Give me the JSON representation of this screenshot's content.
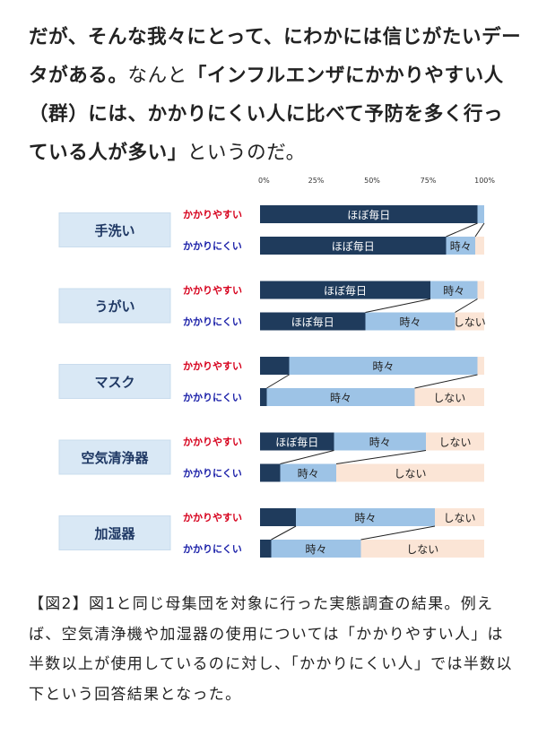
{
  "intro": {
    "p1": "だが、そんな我々にとって、",
    "p2": "にわかには信じがたいデータがある。",
    "p3": "なんと",
    "p4": "「インフルエンザにかかりやすい人（群）には、かかりにくい人に比べて予防を多く行っている人が多い」",
    "p5": "というのだ。"
  },
  "caption": "【図2】図1と同じ母集団を対象に行った実態調査の結果。例えば、空気清浄機や加湿器の使用については「かかりやすい人」は半数以上が使用しているのに対し、「かかりにくい人」では半数以下という回答結果となった。",
  "chart_data": {
    "type": "bar",
    "orientation": "horizontal-stacked-percent",
    "x_ticks": [
      "0%",
      "25%",
      "50%",
      "75%",
      "100%"
    ],
    "xlim": [
      0,
      100
    ],
    "segments": [
      "ほぼ毎日",
      "時々",
      "しない"
    ],
    "colors": {
      "ほぼ毎日": "#1f3b5c",
      "時々": "#9dc3e6",
      "しない": "#fbe5d6",
      "rowA": "#d6001c",
      "rowB": "#1a1fa8",
      "catBox": "#d9e8f5"
    },
    "row_labels": [
      "かかりやすい",
      "かかりにくい"
    ],
    "categories": [
      {
        "name": "手洗い",
        "rows": [
          {
            "label": "かかりやすい",
            "values": [
              97,
              3,
              0
            ],
            "shown": [
              "ほぼ毎日",
              "",
              ""
            ]
          },
          {
            "label": "かかりにくい",
            "values": [
              83,
              13,
              4
            ],
            "shown": [
              "ほぼ毎日",
              "時々",
              ""
            ]
          }
        ]
      },
      {
        "name": "うがい",
        "rows": [
          {
            "label": "かかりやすい",
            "values": [
              76,
              21,
              3
            ],
            "shown": [
              "ほぼ毎日",
              "時々",
              ""
            ]
          },
          {
            "label": "かかりにくい",
            "values": [
              47,
              40,
              13
            ],
            "shown": [
              "ほぼ毎日",
              "時々",
              "しない"
            ]
          }
        ]
      },
      {
        "name": "マスク",
        "rows": [
          {
            "label": "かかりやすい",
            "values": [
              13,
              84,
              3
            ],
            "shown": [
              "",
              "時々",
              ""
            ]
          },
          {
            "label": "かかりにくい",
            "values": [
              3,
              66,
              31
            ],
            "shown": [
              "",
              "時々",
              "しない"
            ]
          }
        ]
      },
      {
        "name": "空気清浄器",
        "rows": [
          {
            "label": "かかりやすい",
            "values": [
              33,
              41,
              26
            ],
            "shown": [
              "ほぼ毎日",
              "時々",
              "しない"
            ]
          },
          {
            "label": "かかりにくい",
            "values": [
              9,
              25,
              66
            ],
            "shown": [
              "",
              "時々",
              "しない"
            ]
          }
        ]
      },
      {
        "name": "加湿器",
        "rows": [
          {
            "label": "かかりやすい",
            "values": [
              16,
              62,
              22
            ],
            "shown": [
              "",
              "時々",
              "しない"
            ]
          },
          {
            "label": "かかりにくい",
            "values": [
              5,
              40,
              55
            ],
            "shown": [
              "",
              "時々",
              "しない"
            ]
          }
        ]
      }
    ]
  }
}
